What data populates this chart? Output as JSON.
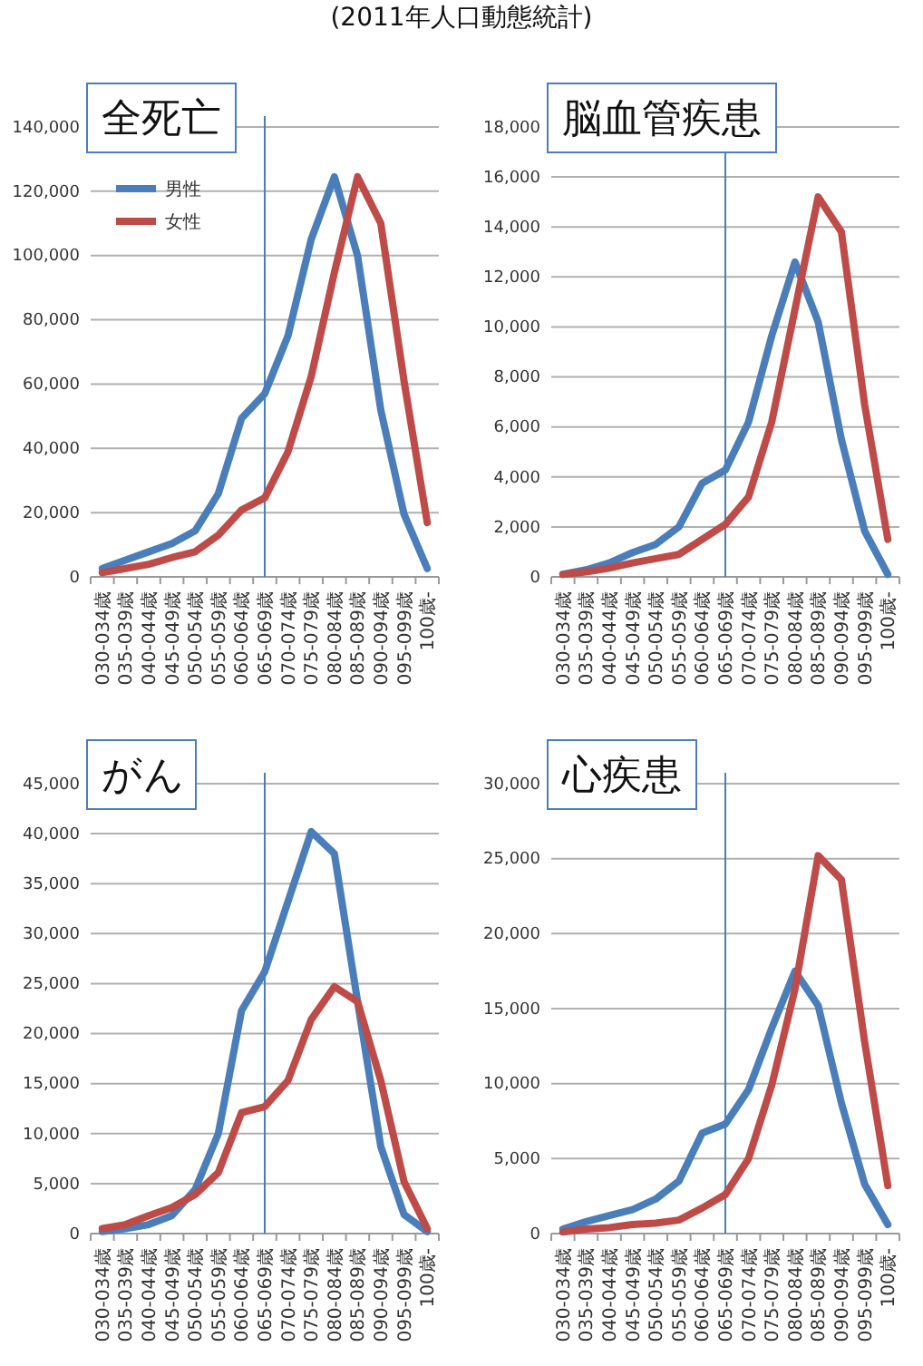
{
  "chart_data": [
    {
      "type": "line",
      "title": "全死亡",
      "annotations": [
        "(2011年人口動態統計)"
      ],
      "categories": [
        "030-034歳",
        "035-039歳",
        "040-044歳",
        "045-049歳",
        "050-054歳",
        "055-059歳",
        "060-064歳",
        "065-069歳",
        "070-074歳",
        "075-079歳",
        "080-084歳",
        "085-089歳",
        "090-094歳",
        "095-099歳",
        "100歳-"
      ],
      "series": [
        {
          "name": "男性",
          "color": "#4a7ebb",
          "values": [
            2600,
            5200,
            7800,
            10400,
            14300,
            25900,
            49300,
            57000,
            75000,
            105000,
            124500,
            99900,
            51900,
            19500,
            2600
          ]
        },
        {
          "name": "女性",
          "color": "#be4b48",
          "values": [
            1300,
            2600,
            3900,
            6000,
            7800,
            13000,
            20800,
            24600,
            38900,
            62300,
            94700,
            124500,
            110000,
            61000,
            16900
          ]
        }
      ],
      "ylim": [
        0,
        140000
      ],
      "yticks": [
        {
          "value": 0,
          "label": "0"
        },
        {
          "value": 20000,
          "label": "20,000"
        },
        {
          "value": 40000,
          "label": "40,000"
        },
        {
          "value": 60000,
          "label": "60,000"
        },
        {
          "value": 80000,
          "label": "80,000"
        },
        {
          "value": 100000,
          "label": "100,000"
        },
        {
          "value": 120000,
          "label": "120,000"
        },
        {
          "value": 140000,
          "label": "140,000"
        }
      ],
      "grid": "y",
      "legend": "top left",
      "ref_lines": [
        {
          "axis": "x",
          "value": "065-069歳",
          "color": "#4a7ebb"
        }
      ]
    },
    {
      "type": "line",
      "title": "脳血管疾患",
      "categories": [
        "030-034歳",
        "035-039歳",
        "040-044歳",
        "045-049歳",
        "050-054歳",
        "055-059歳",
        "060-064歳",
        "065-069歳",
        "070-074歳",
        "075-079歳",
        "080-084歳",
        "085-089歳",
        "090-094歳",
        "095-099歳",
        "100歳-"
      ],
      "series": [
        {
          "color": "#4a7ebb",
          "values": [
            100,
            280,
            560,
            970,
            1300,
            2000,
            3750,
            4270,
            6200,
            9650,
            12600,
            10200,
            5500,
            1840,
            100
          ]
        },
        {
          "color": "#be4b48",
          "values": [
            100,
            200,
            350,
            560,
            730,
            900,
            1500,
            2100,
            3200,
            6200,
            10700,
            15200,
            13800,
            6900,
            1500
          ]
        }
      ],
      "ylim": [
        0,
        18000
      ],
      "yticks": [
        {
          "value": 0,
          "label": "0"
        },
        {
          "value": 2000,
          "label": "2,000"
        },
        {
          "value": 4000,
          "label": "4,000"
        },
        {
          "value": 6000,
          "label": "6,000"
        },
        {
          "value": 8000,
          "label": "8,000"
        },
        {
          "value": 10000,
          "label": "10,000"
        },
        {
          "value": 12000,
          "label": "12,000"
        },
        {
          "value": 14000,
          "label": "14,000"
        },
        {
          "value": 16000,
          "label": "16,000"
        },
        {
          "value": 18000,
          "label": "18,000"
        }
      ],
      "grid": "y",
      "ref_lines": [
        {
          "axis": "x",
          "value": "065-069歳",
          "color": "#4a7ebb"
        }
      ]
    },
    {
      "type": "line",
      "title": "がん",
      "categories": [
        "030-034歳",
        "035-039歳",
        "040-044歳",
        "045-049歳",
        "050-054歳",
        "055-059歳",
        "060-064歳",
        "065-069歳",
        "070-074歳",
        "075-079歳",
        "080-084歳",
        "085-089歳",
        "090-094歳",
        "095-099歳",
        "100歳-"
      ],
      "series": [
        {
          "color": "#4a7ebb",
          "values": [
            200,
            500,
            900,
            1800,
            4400,
            10000,
            22300,
            26200,
            33200,
            40200,
            38000,
            23200,
            8700,
            1900,
            200
          ]
        },
        {
          "color": "#be4b48",
          "values": [
            500,
            900,
            1800,
            2600,
            3900,
            6100,
            12100,
            12700,
            15300,
            21400,
            24700,
            23200,
            15300,
            5200,
            500
          ]
        }
      ],
      "ylim": [
        0,
        45000
      ],
      "yticks": [
        {
          "value": 0,
          "label": "0"
        },
        {
          "value": 5000,
          "label": "5,000"
        },
        {
          "value": 10000,
          "label": "10,000"
        },
        {
          "value": 15000,
          "label": "15,000"
        },
        {
          "value": 20000,
          "label": "20,000"
        },
        {
          "value": 25000,
          "label": "25,000"
        },
        {
          "value": 30000,
          "label": "30,000"
        },
        {
          "value": 35000,
          "label": "35,000"
        },
        {
          "value": 40000,
          "label": "40,000"
        },
        {
          "value": 45000,
          "label": "45,000"
        }
      ],
      "grid": "y",
      "ref_lines": [
        {
          "axis": "x",
          "value": "065-069歳",
          "color": "#4a7ebb"
        }
      ]
    },
    {
      "type": "line",
      "title": "心疾患",
      "categories": [
        "030-034歳",
        "035-039歳",
        "040-044歳",
        "045-049歳",
        "050-054歳",
        "055-059歳",
        "060-064歳",
        "065-069歳",
        "070-074歳",
        "075-079歳",
        "080-084歳",
        "085-089歳",
        "090-094歳",
        "095-099歳",
        "100歳-"
      ],
      "series": [
        {
          "color": "#4a7ebb",
          "values": [
            300,
            800,
            1200,
            1600,
            2300,
            3500,
            6700,
            7300,
            9600,
            13700,
            17500,
            15200,
            8700,
            3300,
            600
          ]
        },
        {
          "color": "#be4b48",
          "values": [
            100,
            300,
            400,
            600,
            700,
            900,
            1700,
            2600,
            5000,
            9900,
            16300,
            25200,
            23600,
            12800,
            3200
          ]
        }
      ],
      "ylim": [
        0,
        30000
      ],
      "yticks": [
        {
          "value": 0,
          "label": "0"
        },
        {
          "value": 5000,
          "label": "5,000"
        },
        {
          "value": 10000,
          "label": "10,000"
        },
        {
          "value": 15000,
          "label": "15,000"
        },
        {
          "value": 20000,
          "label": "20,000"
        },
        {
          "value": 25000,
          "label": "25,000"
        },
        {
          "value": 30000,
          "label": "30,000"
        }
      ],
      "grid": "y",
      "ref_lines": [
        {
          "axis": "x",
          "value": "065-069歳",
          "color": "#4a7ebb"
        }
      ]
    }
  ]
}
